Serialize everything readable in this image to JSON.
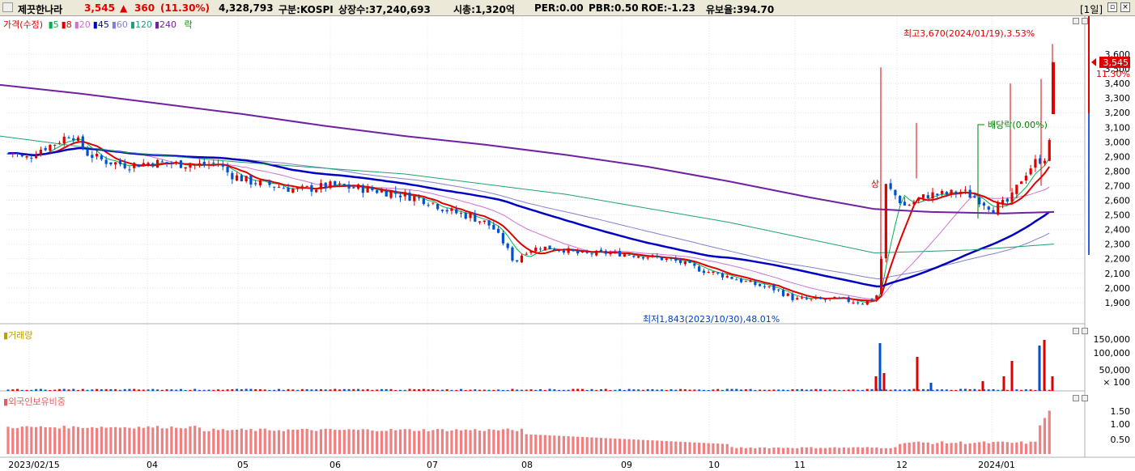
{
  "header": {
    "name": "제끗한나라",
    "price": "3,545",
    "change_arrow": "▲",
    "change": "360",
    "change_pct": "(11.30%)",
    "volume": "4,328,793",
    "market": "구분:KOSPI",
    "listed_shares": "상장수:37,240,693",
    "market_cap": "시총:1,320억",
    "per": "PER:0.00",
    "pbr": "PBR:0.50",
    "roe": "ROE:-1.23",
    "reserve": "유보율:394.70",
    "period_button": "[1일]"
  },
  "legend": {
    "price_label": "가격(수정)",
    "ma": [
      {
        "label": "5",
        "color": "#00b050"
      },
      {
        "label": "8",
        "color": "#e00000"
      },
      {
        "label": "20",
        "color": "#d070d0"
      },
      {
        "label": "45",
        "color": "#0000c0"
      },
      {
        "label": "60",
        "color": "#8080d0"
      },
      {
        "label": "120",
        "color": "#20a070"
      },
      {
        "label": "240",
        "color": "#7020a0"
      }
    ],
    "ex_label": "락"
  },
  "price_axis": {
    "ticks": [
      "3,600",
      "3,500",
      "3,400",
      "3,300",
      "3,200",
      "3,100",
      "3,000",
      "2,900",
      "2,800",
      "2,700",
      "2,600",
      "2,500",
      "2,400",
      "2,300",
      "2,200",
      "2,100",
      "2,000",
      "1,900"
    ],
    "current_badge": "3,545",
    "current_pct": "11.30%"
  },
  "annotations": {
    "high": "최고3,670(2024/01/19),3.53%",
    "low": "최저1,843(2023/10/30),48.01%",
    "dividend": "배당락(0.00%)",
    "marker": "상"
  },
  "volume_panel": {
    "title": "거래량",
    "ticks": [
      "150,000",
      "100,000",
      "50,000",
      "× 100"
    ]
  },
  "foreign_panel": {
    "title": "외국인보유비중",
    "ticks": [
      "1.50",
      "1.00",
      "0.50"
    ]
  },
  "x_axis": {
    "labels": [
      "2023/02/15",
      "04",
      "05",
      "06",
      "07",
      "08",
      "09",
      "10",
      "11",
      "12",
      "2024/01"
    ]
  },
  "colors": {
    "up": "#e00000",
    "down": "#0050d0",
    "ma240": "#7020a0",
    "ma45": "#0000c0",
    "ma8": "#e00000"
  }
}
